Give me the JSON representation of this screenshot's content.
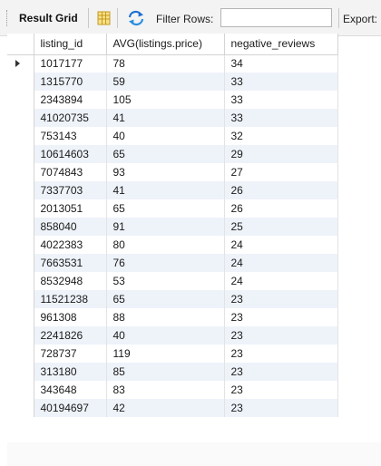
{
  "toolbar": {
    "title": "Result Grid",
    "filter_label": "Filter Rows:",
    "filter_value": "",
    "export_label": "Export:"
  },
  "icons": {
    "grid_icon": "grid-view-icon",
    "refresh_icon": "refresh-icon",
    "accent": "#1f6fd0"
  },
  "columns": [
    "listing_id",
    "AVG(listings.price)",
    "negative_reviews"
  ],
  "rows": [
    {
      "listing_id": "1017177",
      "avg_price": "78",
      "negative_reviews": "34"
    },
    {
      "listing_id": "1315770",
      "avg_price": "59",
      "negative_reviews": "33"
    },
    {
      "listing_id": "2343894",
      "avg_price": "105",
      "negative_reviews": "33"
    },
    {
      "listing_id": "41020735",
      "avg_price": "41",
      "negative_reviews": "33"
    },
    {
      "listing_id": "753143",
      "avg_price": "40",
      "negative_reviews": "32"
    },
    {
      "listing_id": "10614603",
      "avg_price": "65",
      "negative_reviews": "29"
    },
    {
      "listing_id": "7074843",
      "avg_price": "93",
      "negative_reviews": "27"
    },
    {
      "listing_id": "7337703",
      "avg_price": "41",
      "negative_reviews": "26"
    },
    {
      "listing_id": "2013051",
      "avg_price": "65",
      "negative_reviews": "26"
    },
    {
      "listing_id": "858040",
      "avg_price": "91",
      "negative_reviews": "25"
    },
    {
      "listing_id": "4022383",
      "avg_price": "80",
      "negative_reviews": "24"
    },
    {
      "listing_id": "7663531",
      "avg_price": "76",
      "negative_reviews": "24"
    },
    {
      "listing_id": "8532948",
      "avg_price": "53",
      "negative_reviews": "24"
    },
    {
      "listing_id": "11521238",
      "avg_price": "65",
      "negative_reviews": "23"
    },
    {
      "listing_id": "961308",
      "avg_price": "88",
      "negative_reviews": "23"
    },
    {
      "listing_id": "2241826",
      "avg_price": "40",
      "negative_reviews": "23"
    },
    {
      "listing_id": "728737",
      "avg_price": "119",
      "negative_reviews": "23"
    },
    {
      "listing_id": "313180",
      "avg_price": "85",
      "negative_reviews": "23"
    },
    {
      "listing_id": "343648",
      "avg_price": "83",
      "negative_reviews": "23"
    },
    {
      "listing_id": "40194697",
      "avg_price": "42",
      "negative_reviews": "23"
    }
  ]
}
